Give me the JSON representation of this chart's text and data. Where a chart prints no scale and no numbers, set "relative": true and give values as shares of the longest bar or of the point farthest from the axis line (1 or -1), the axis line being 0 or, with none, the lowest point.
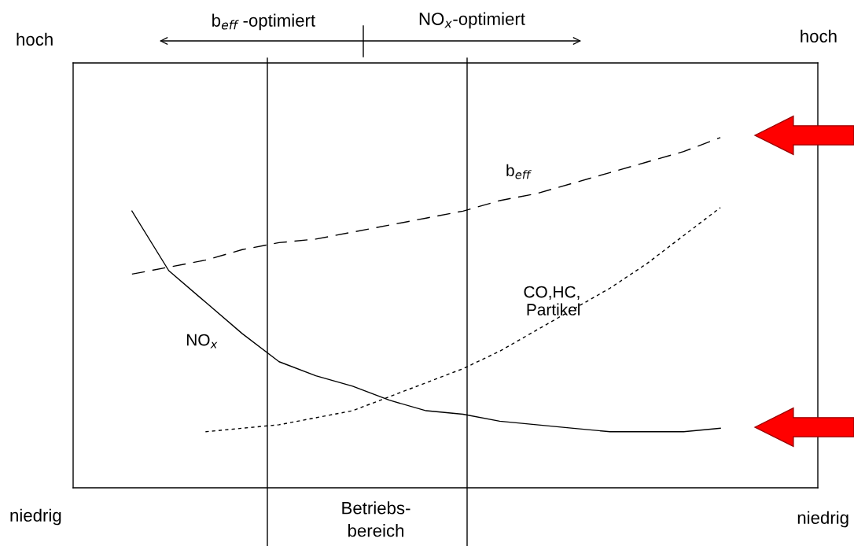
{
  "chart_data": {
    "type": "line",
    "relative": true,
    "categories": [
      null,
      null,
      null,
      null,
      null,
      null,
      null,
      null,
      null,
      null,
      null,
      null,
      null,
      null,
      null,
      null,
      null
    ],
    "series": [
      {
        "name": "b$_{eff}$",
        "color": "#000000",
        "line_style": "dashed",
        "values": [
          0.61,
          0.63,
          0.65,
          0.68,
          0.7,
          0.71,
          0.73,
          0.75,
          0.77,
          0.79,
          0.82,
          0.84,
          0.87,
          0.9,
          0.93,
          0.96,
          1.0
        ]
      },
      {
        "name": "NO$_{x}$",
        "color": "#000000",
        "line_style": "solid",
        "values": [
          0.79,
          0.62,
          0.53,
          0.44,
          0.36,
          0.32,
          0.29,
          0.25,
          0.22,
          0.21,
          0.19,
          0.18,
          0.17,
          0.16,
          0.16,
          0.16,
          0.17
        ]
      },
      {
        "name": "CO,HC,\nPartikel",
        "color": "#000000",
        "line_style": "dotted",
        "values": [
          null,
          null,
          0.16,
          0.17,
          0.18,
          0.2,
          0.22,
          0.26,
          0.3,
          0.34,
          0.39,
          0.45,
          0.51,
          0.57,
          0.64,
          0.72,
          0.8
        ]
      }
    ],
    "annotations": [
      "hoch",
      "hoch",
      "niedrig",
      "niedrig",
      "b$_{eff}$ -optimiert",
      "NO$_{x}$-optimiert",
      "Betriebs-\nbereich"
    ],
    "legend": false,
    "marker": "none",
    "tick_labels": false
  }
}
